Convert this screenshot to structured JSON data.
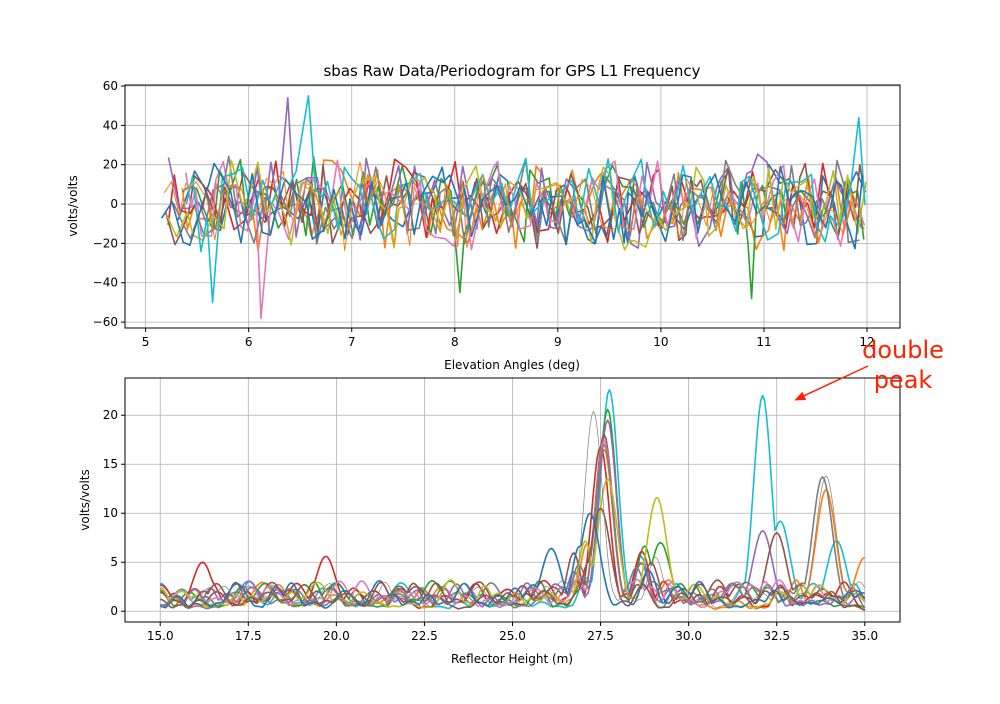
{
  "chart_data": [
    {
      "type": "line",
      "title": "sbas Raw Data/Periodogram for GPS L1 Frequency",
      "xlabel": "Elevation Angles (deg)",
      "ylabel": "volts/volts",
      "xlim": [
        4.8,
        12.32
      ],
      "ylim": [
        -63,
        60.5
      ],
      "xticks": [
        5,
        6,
        7,
        8,
        9,
        10,
        11,
        12
      ],
      "yticks": [
        -60,
        -40,
        -20,
        0,
        20,
        40,
        60
      ],
      "grid": true,
      "legend": "none",
      "series_count": 12,
      "x_range_of_series": [
        5.15,
        12.0
      ],
      "approx_amplitude": 20,
      "colors": [
        "#1f77b4",
        "#ff7f0e",
        "#2ca02c",
        "#d62728",
        "#9467bd",
        "#8c564b",
        "#e377c2",
        "#7f7f7f",
        "#bcbd22",
        "#17becf",
        "#1f77b4",
        "#ff7f0e"
      ],
      "notable_extremes": [
        {
          "x": 6.38,
          "y": 54,
          "color": "#9467bd"
        },
        {
          "x": 6.58,
          "y": 55,
          "color": "#17becf"
        },
        {
          "x": 6.12,
          "y": -58,
          "color": "#e377c2"
        },
        {
          "x": 5.65,
          "y": -50,
          "color": "#17becf"
        },
        {
          "x": 8.05,
          "y": -45,
          "color": "#2ca02c"
        },
        {
          "x": 10.88,
          "y": -48,
          "color": "#2ca02c"
        },
        {
          "x": 11.92,
          "y": 44,
          "color": "#17becf"
        }
      ]
    },
    {
      "type": "line",
      "title": "",
      "xlabel": "Reflector Height (m)",
      "ylabel": "volts/volts",
      "xlim": [
        14,
        36
      ],
      "ylim": [
        -1.1,
        23.8
      ],
      "xticks": [
        15.0,
        17.5,
        20.0,
        22.5,
        25.0,
        27.5,
        30.0,
        32.5,
        35.0
      ],
      "xtick_labels": [
        "15.0",
        "17.5",
        "20.0",
        "22.5",
        "25.0",
        "27.5",
        "30.0",
        "32.5",
        "35.0"
      ],
      "yticks": [
        0,
        5,
        10,
        15,
        20
      ],
      "grid": true,
      "legend": "none",
      "main_peak_x": 27.6,
      "series": [
        {
          "color": "#17becf",
          "peaks": [
            [
              27.75,
              22.6
            ],
            [
              32.1,
              22.0
            ],
            [
              32.6,
              9.2
            ],
            [
              34.2,
              7.2
            ]
          ]
        },
        {
          "color": "#ff7f0e",
          "peaks": [
            [
              27.6,
              16.5
            ],
            [
              33.9,
              12.4
            ],
            [
              35.0,
              5.5
            ]
          ]
        },
        {
          "color": "#2ca02c",
          "peaks": [
            [
              27.7,
              20.6
            ],
            [
              29.2,
              7.0
            ]
          ]
        },
        {
          "color": "#d62728",
          "peaks": [
            [
              27.5,
              16.8
            ],
            [
              16.2,
              5.0
            ],
            [
              19.7,
              5.6
            ]
          ]
        },
        {
          "color": "#9467bd",
          "peaks": [
            [
              27.7,
              19.5
            ],
            [
              32.1,
              8.2
            ]
          ]
        },
        {
          "color": "#8c564b",
          "peaks": [
            [
              27.6,
              18.0
            ],
            [
              32.5,
              8.0
            ]
          ]
        },
        {
          "color": "#e377c2",
          "peaks": [
            [
              27.6,
              17.4
            ]
          ]
        },
        {
          "color": "#7f7f7f",
          "peaks": [
            [
              27.6,
              17.0
            ],
            [
              33.8,
              13.7
            ]
          ]
        },
        {
          "color": "#bcbd22",
          "peaks": [
            [
              27.7,
              13.5
            ],
            [
              29.1,
              11.6
            ]
          ]
        },
        {
          "color": "#1f77b4",
          "peaks": [
            [
              27.2,
              10.0
            ],
            [
              26.1,
              6.4
            ]
          ]
        },
        {
          "color": "#8c564b",
          "peaks": [
            [
              27.5,
              10.5
            ]
          ]
        },
        {
          "color": "#7f7f7f",
          "peaks": [
            [
              27.3,
              20.4
            ],
            [
              33.9,
              13.8
            ]
          ],
          "thin": true
        }
      ],
      "annotation": {
        "text_line1": "double",
        "text_line2": "peak",
        "color": "#ff2200",
        "arrow_target": [
          33.0,
          21.5
        ]
      }
    }
  ]
}
